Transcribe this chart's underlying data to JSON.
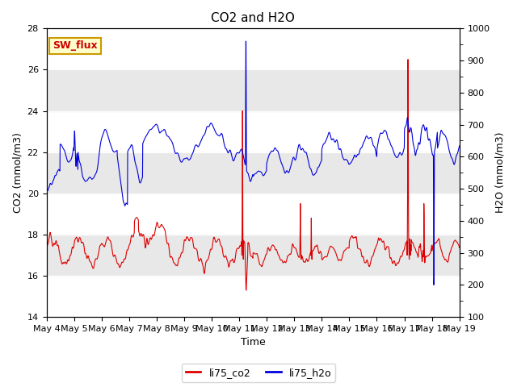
{
  "title": "CO2 and H2O",
  "xlabel": "Time",
  "ylabel_left": "CO2 (mmol/m3)",
  "ylabel_right": "H2O (mmol/m3)",
  "ylim_left": [
    14,
    28
  ],
  "ylim_right": [
    100,
    1000
  ],
  "yticks_left": [
    14,
    16,
    18,
    20,
    22,
    24,
    26,
    28
  ],
  "yticks_right": [
    100,
    200,
    300,
    400,
    500,
    600,
    700,
    800,
    900,
    1000
  ],
  "legend_entries": [
    "li75_co2",
    "li75_h2o"
  ],
  "legend_colors": [
    "#dd0000",
    "#0000dd"
  ],
  "line_color_co2": "#dd0000",
  "line_color_h2o": "#0000dd",
  "annotation_text": "SW_flux",
  "annotation_color": "#cc0000",
  "annotation_bg": "#ffffcc",
  "annotation_border": "#cc9900",
  "gray_band_color": "#e8e8e8",
  "background_color": "#ffffff",
  "axes_bg_color": "#ffffff",
  "grid_color": "#ffffff",
  "xtick_labels": [
    "May 4",
    "May 5",
    "May 6",
    "May 7",
    "May 8",
    "May 9",
    "May 10",
    "May 11",
    "May 12",
    "May 13",
    "May 14",
    "May 15",
    "May 16",
    "May 17",
    "May 18",
    "May 19"
  ],
  "n_points": 2000,
  "figsize": [
    6.4,
    4.8
  ],
  "dpi": 100
}
